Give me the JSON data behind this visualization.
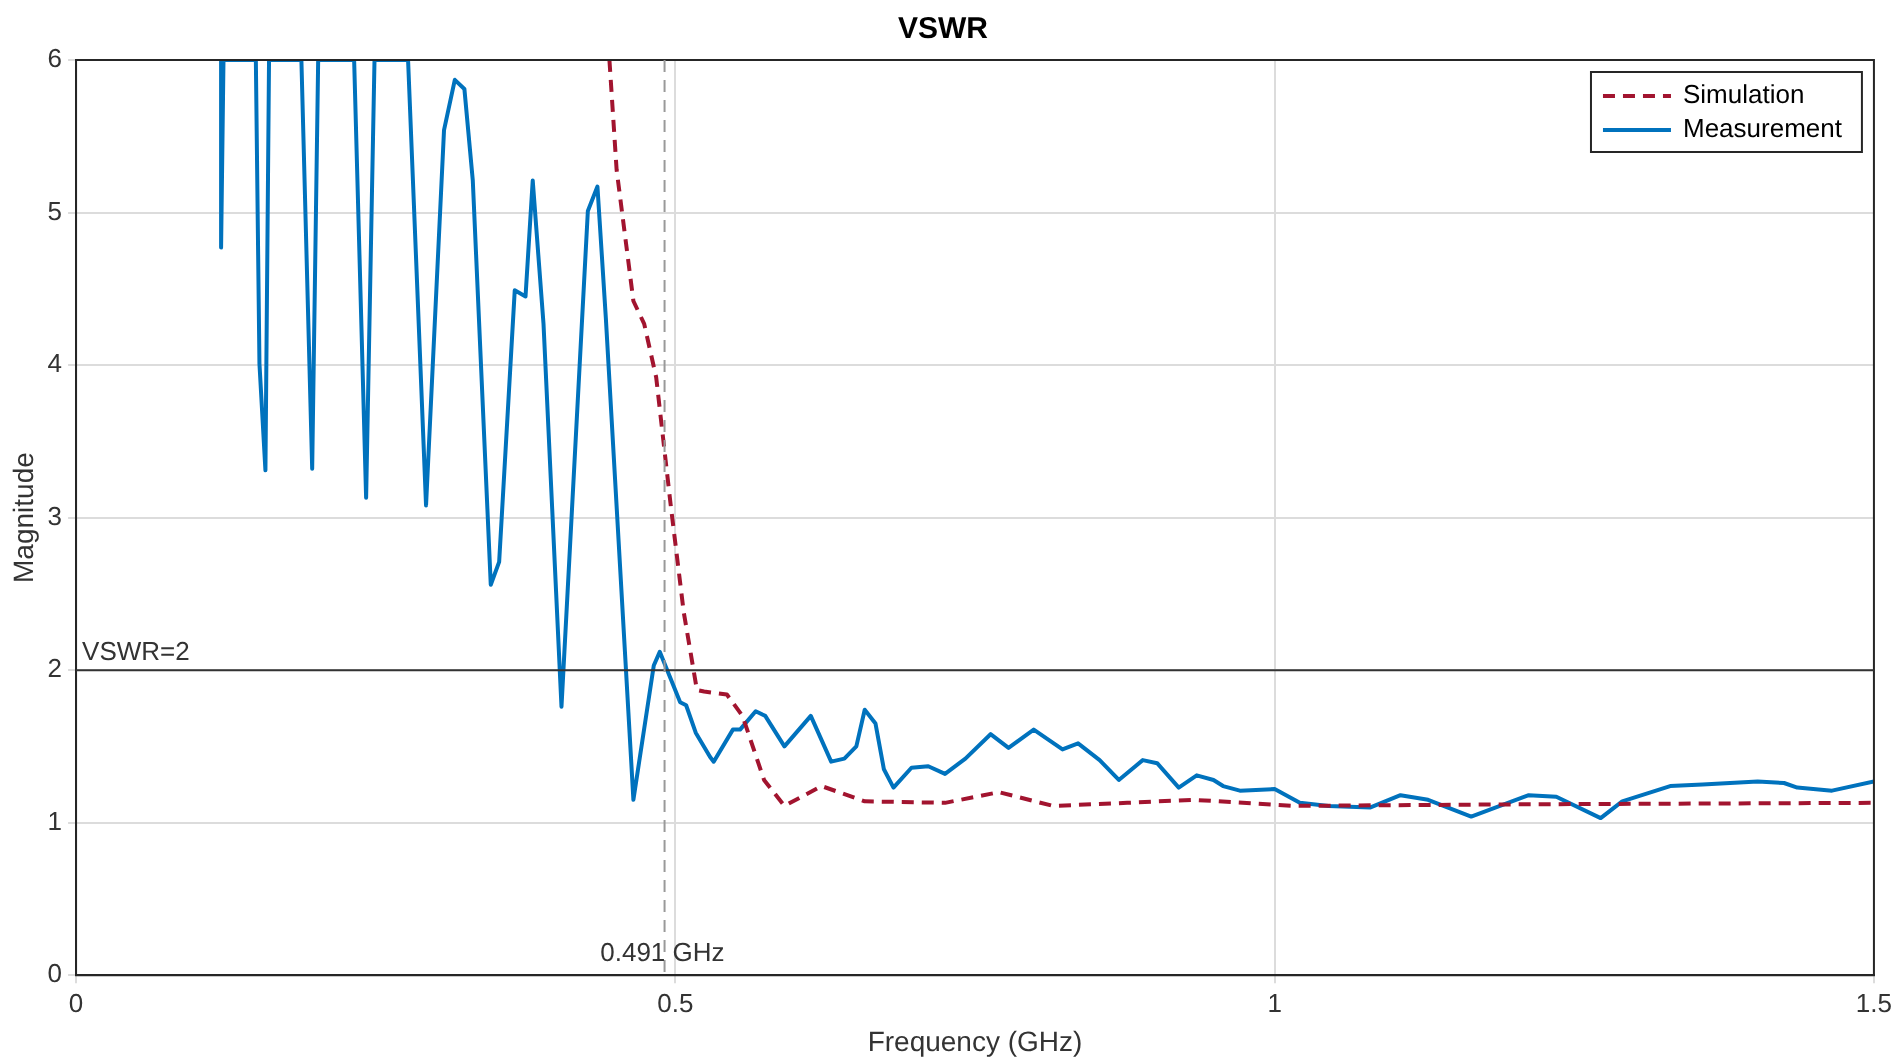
{
  "chart_data": {
    "type": "line",
    "title": "VSWR",
    "xlabel": "Frequency (GHz)",
    "ylabel": "Magnitude",
    "xlim": [
      0,
      1.5
    ],
    "xticks": [
      0,
      0.5,
      1,
      1.5
    ],
    "ylim": [
      0,
      6
    ],
    "yticks": [
      0,
      1,
      2,
      3,
      4,
      5,
      6
    ],
    "grid": true,
    "legend": "top right",
    "marker": "none",
    "series": [
      {
        "name": "Simulation",
        "color": "#a2142f",
        "line_style": "dashed",
        "x": [
          0.445,
          0.451,
          0.465,
          0.474,
          0.484,
          0.496,
          0.507,
          0.518,
          0.524,
          0.543,
          0.556,
          0.574,
          0.591,
          0.622,
          0.658,
          0.725,
          0.77,
          0.815,
          0.877,
          0.932,
          1.016,
          1.2,
          1.5
        ],
        "values": [
          6,
          5.28,
          4.42,
          4.27,
          3.92,
          3.09,
          2.38,
          1.87,
          1.86,
          1.84,
          1.7,
          1.28,
          1.11,
          1.24,
          1.14,
          1.13,
          1.2,
          1.11,
          1.13,
          1.15,
          1.11,
          1.12,
          1.13
        ]
      },
      {
        "name": "Measurement",
        "color": "#0072bd",
        "line_style": "solid",
        "x": [
          0.121,
          0.121,
          0.123,
          0.15,
          0.153,
          0.158,
          0.161,
          0.188,
          0.197,
          0.202,
          0.232,
          0.242,
          0.249,
          0.277,
          0.292,
          0.307,
          0.316,
          0.324,
          0.331,
          0.346,
          0.353,
          0.366,
          0.375,
          0.381,
          0.39,
          0.405,
          0.427,
          0.435,
          0.442,
          0.465,
          0.482,
          0.487,
          0.504,
          0.509,
          0.517,
          0.529,
          0.532,
          0.548,
          0.554,
          0.567,
          0.575,
          0.591,
          0.613,
          0.63,
          0.641,
          0.651,
          0.658,
          0.667,
          0.674,
          0.682,
          0.697,
          0.711,
          0.725,
          0.742,
          0.763,
          0.778,
          0.799,
          0.823,
          0.836,
          0.854,
          0.87,
          0.89,
          0.902,
          0.92,
          0.935,
          0.949,
          0.957,
          0.971,
          1.0,
          1.021,
          1.045,
          1.08,
          1.105,
          1.128,
          1.164,
          1.212,
          1.235,
          1.272,
          1.29,
          1.33,
          1.357,
          1.403,
          1.425,
          1.436,
          1.465,
          1.5
        ],
        "values": [
          6,
          4.77,
          6,
          6,
          4.01,
          3.31,
          6,
          6,
          3.32,
          6,
          6,
          3.13,
          6,
          6,
          3.08,
          5.54,
          5.87,
          5.81,
          5.21,
          2.56,
          2.71,
          4.49,
          4.45,
          5.21,
          4.27,
          1.76,
          5.01,
          5.17,
          4.31,
          1.15,
          2.03,
          2.12,
          1.79,
          1.77,
          1.59,
          1.43,
          1.4,
          1.61,
          1.61,
          1.73,
          1.7,
          1.5,
          1.7,
          1.4,
          1.42,
          1.5,
          1.74,
          1.65,
          1.35,
          1.23,
          1.36,
          1.37,
          1.32,
          1.42,
          1.58,
          1.49,
          1.61,
          1.48,
          1.52,
          1.41,
          1.28,
          1.41,
          1.39,
          1.23,
          1.31,
          1.28,
          1.24,
          1.21,
          1.22,
          1.13,
          1.11,
          1.1,
          1.18,
          1.15,
          1.04,
          1.18,
          1.17,
          1.03,
          1.14,
          1.24,
          1.25,
          1.27,
          1.26,
          1.23,
          1.21,
          1.27
        ]
      }
    ],
    "ref_lines": [
      {
        "axis": "y",
        "value": 2,
        "label": "VSWR=2",
        "color": "#333333",
        "line_style": "solid"
      },
      {
        "axis": "x",
        "value": 0.491,
        "label": "0.491 GHz",
        "color": "#999999",
        "line_style": "dashed"
      }
    ]
  }
}
